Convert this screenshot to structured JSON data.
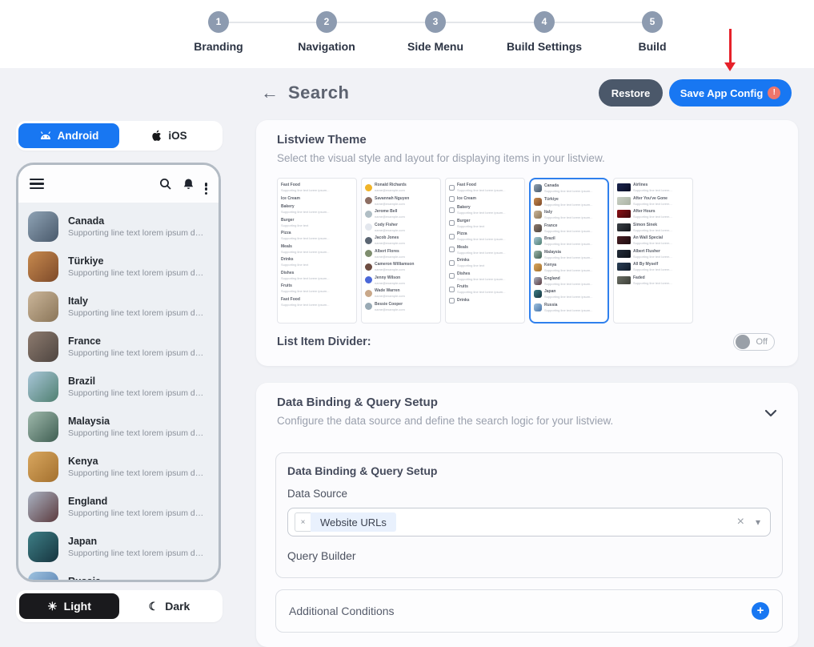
{
  "stepper": {
    "steps": [
      {
        "num": "1",
        "label": "Branding"
      },
      {
        "num": "2",
        "label": "Navigation"
      },
      {
        "num": "3",
        "label": "Side Menu"
      },
      {
        "num": "4",
        "label": "Build Settings"
      },
      {
        "num": "5",
        "label": "Build"
      }
    ]
  },
  "header": {
    "back_icon": "←",
    "title": "Search",
    "restore_label": "Restore",
    "save_label": "Save App Config",
    "save_badge": "!"
  },
  "platform_toggle": {
    "android_label": "Android",
    "ios_label": "iOS",
    "selected": "Android"
  },
  "phone_preview": {
    "items": [
      {
        "title": "Canada",
        "sub": "Supporting line text lorem ipsum dol...",
        "c1": "#8fa3b5",
        "c2": "#49596b"
      },
      {
        "title": "Türkiye",
        "sub": "Supporting line text lorem ipsum dol...",
        "c1": "#c88a4e",
        "c2": "#7d4a2a"
      },
      {
        "title": "Italy",
        "sub": "Supporting line text lorem ipsum dol...",
        "c1": "#cbb69a",
        "c2": "#8a7558"
      },
      {
        "title": "France",
        "sub": "Supporting line text lorem ipsum dol...",
        "c1": "#8d7b6f",
        "c2": "#4e4540"
      },
      {
        "title": "Brazil",
        "sub": "Supporting line text lorem ipsum dol...",
        "c1": "#a8c6d8",
        "c2": "#4f7f70"
      },
      {
        "title": "Malaysia",
        "sub": "Supporting line text lorem ipsum dol...",
        "c1": "#9fb9ac",
        "c2": "#3f5e52"
      },
      {
        "title": "Kenya",
        "sub": "Supporting line text lorem ipsum dol...",
        "c1": "#d9a75f",
        "c2": "#a3702e"
      },
      {
        "title": "England",
        "sub": "Supporting line text lorem ipsum dol...",
        "c1": "#aab3c2",
        "c2": "#5b3a3e"
      },
      {
        "title": "Japan",
        "sub": "Supporting line text lorem ipsum dol...",
        "c1": "#3e7f86",
        "c2": "#16343f"
      },
      {
        "title": "Russia",
        "sub": "Supporting line text lorem ipsum dol...",
        "c1": "#9fc3e0",
        "c2": "#4a74a8"
      }
    ]
  },
  "theme_toggle": {
    "light_label": "Light",
    "dark_label": "Dark",
    "selected": "Light",
    "light_icon": "☀",
    "dark_icon": "☾"
  },
  "listview_theme": {
    "title": "Listview Theme",
    "subtitle": "Select the visual style and layout for displaying items in your listview.",
    "divider_label": "List Item Divider:",
    "divider_state": "Off",
    "thumbnails": [
      {
        "type": "text",
        "selected": false,
        "items": [
          {
            "t": "Fast Food",
            "s": "Supporting line text lorem ipsum..."
          },
          {
            "t": "Ice Cream",
            "s": ""
          },
          {
            "t": "Bakery",
            "s": "Supporting line text lorem ipsum..."
          },
          {
            "t": "Burger",
            "s": "Supporting line text"
          },
          {
            "t": "Pizza",
            "s": "Supporting line text lorem ipsum..."
          },
          {
            "t": "Meals",
            "s": "Supporting line text lorem ipsum..."
          },
          {
            "t": "Drinks",
            "s": "Supporting line text"
          },
          {
            "t": "Dishes",
            "s": "Supporting line text lorem ipsum..."
          },
          {
            "t": "Fruits",
            "s": "Supporting line text lorem ipsum..."
          },
          {
            "t": "Fast Food",
            "s": "Supporting line text lorem ipsum..."
          }
        ]
      },
      {
        "type": "avatar",
        "selected": false,
        "items": [
          {
            "t": "Ronald Richards",
            "s": "name@example.com",
            "c": "#f0b429"
          },
          {
            "t": "Savannah Nguyen",
            "s": "name@example.com",
            "c": "#8d6e63"
          },
          {
            "t": "Jerome Bell",
            "s": "name@example.com",
            "c": "#b0bec5"
          },
          {
            "t": "Cody Fisher",
            "s": "name@example.com",
            "c": "#e3e7ee"
          },
          {
            "t": "Jacob Jones",
            "s": "name@example.com",
            "c": "#5a6572"
          },
          {
            "t": "Albert Flores",
            "s": "name@example.com",
            "c": "#7e8d6e"
          },
          {
            "t": "Cameron Williamson",
            "s": "name@example.com",
            "c": "#6d4c41"
          },
          {
            "t": "Jenny Wilson",
            "s": "name@example.com",
            "c": "#4a67d8"
          },
          {
            "t": "Wade Warren",
            "s": "name@example.com",
            "c": "#c9a88a"
          },
          {
            "t": "Bessie Cooper",
            "s": "name@example.com",
            "c": "#99aab5"
          }
        ]
      },
      {
        "type": "icon",
        "selected": false,
        "items": [
          {
            "t": "Fast Food",
            "s": "Supporting line text lorem ipsum..."
          },
          {
            "t": "Ice Cream",
            "s": ""
          },
          {
            "t": "Bakery",
            "s": "Supporting line text lorem ipsum..."
          },
          {
            "t": "Burger",
            "s": "Supporting line text"
          },
          {
            "t": "Pizza",
            "s": "Supporting line text lorem ipsum..."
          },
          {
            "t": "Meals",
            "s": "Supporting line text lorem ipsum..."
          },
          {
            "t": "Drinks",
            "s": "Supporting line text"
          },
          {
            "t": "Dishes",
            "s": "Supporting line text lorem ipsum..."
          },
          {
            "t": "Fruits",
            "s": "Supporting line text lorem ipsum..."
          },
          {
            "t": "Drinks",
            "s": ""
          }
        ]
      },
      {
        "type": "image",
        "selected": true,
        "items": [
          {
            "t": "Canada",
            "s": "Supporting line text lorem ipsum...",
            "c1": "#8fa3b5",
            "c2": "#49596b"
          },
          {
            "t": "Türkiye",
            "s": "Supporting line text lorem ipsum...",
            "c1": "#c88a4e",
            "c2": "#7d4a2a"
          },
          {
            "t": "Italy",
            "s": "Supporting line text lorem ipsum...",
            "c1": "#cbb69a",
            "c2": "#8a7558"
          },
          {
            "t": "France",
            "s": "Supporting line text lorem ipsum...",
            "c1": "#8d7b6f",
            "c2": "#4e4540"
          },
          {
            "t": "Brazil",
            "s": "Supporting line text lorem ipsum...",
            "c1": "#a8c6d8",
            "c2": "#4f7f70"
          },
          {
            "t": "Malaysia",
            "s": "Supporting line text lorem ipsum...",
            "c1": "#9fb9ac",
            "c2": "#3f5e52"
          },
          {
            "t": "Kenya",
            "s": "Supporting line text lorem ipsum...",
            "c1": "#d9a75f",
            "c2": "#a3702e"
          },
          {
            "t": "England",
            "s": "Supporting line text lorem ipsum...",
            "c1": "#aab3c2",
            "c2": "#5b3a3e"
          },
          {
            "t": "Japan",
            "s": "Supporting line text lorem ipsum...",
            "c1": "#3e7f86",
            "c2": "#16343f"
          },
          {
            "t": "Russia",
            "s": "Supporting line text lorem ipsum...",
            "c1": "#9fc3e0",
            "c2": "#4a74a8"
          }
        ]
      },
      {
        "type": "media",
        "selected": false,
        "items": [
          {
            "t": "Airlines",
            "s": "Supporting line text lorem...",
            "c1": "#1a2550",
            "c2": "#0b0f25"
          },
          {
            "t": "After You've Gone",
            "s": "Supporting line text lorem...",
            "c1": "#c9cfc4",
            "c2": "#aab3a4"
          },
          {
            "t": "After Hours",
            "s": "Supporting line text lorem...",
            "c1": "#8c1016",
            "c2": "#3f060a"
          },
          {
            "t": "Simon Sinek",
            "s": "Supporting line text lorem...",
            "c1": "#3a3f46",
            "c2": "#15181d"
          },
          {
            "t": "An Wall Special",
            "s": "Supporting line text lorem...",
            "c1": "#4a1f25",
            "c2": "#1c0d10"
          },
          {
            "t": "Albert Flusher",
            "s": "Supporting line text lorem...",
            "c1": "#232c3a",
            "c2": "#0d1118"
          },
          {
            "t": "All By Myself",
            "s": "Supporting line text lorem...",
            "c1": "#2b3f57",
            "c2": "#101b29"
          },
          {
            "t": "Faded",
            "s": "Supporting line text lorem...",
            "c1": "#6b6f66",
            "c2": "#3d4038"
          }
        ]
      }
    ]
  },
  "data_binding": {
    "section_title": "Data Binding & Query Setup",
    "section_subtitle": "Configure the data source and define the search logic for your listview.",
    "card_title": "Data Binding & Query Setup",
    "data_source_label": "Data Source",
    "chip_value": "Website URLs",
    "chip_remove_icon": "×",
    "clear_icon": "×",
    "caret_icon": "▾",
    "query_builder_label": "Query Builder",
    "additional_conditions_label": "Additional Conditions",
    "add_condition_icon": "+"
  },
  "colors": {
    "accent_blue": "#1877f2",
    "step_circle": "#8d9bb0",
    "restore_gray": "#4b586a",
    "badge_salmon": "#ee766c",
    "annotation_red": "#e6212a",
    "selected_border": "#2f80ed",
    "page_bg": "#f1f2f6"
  }
}
